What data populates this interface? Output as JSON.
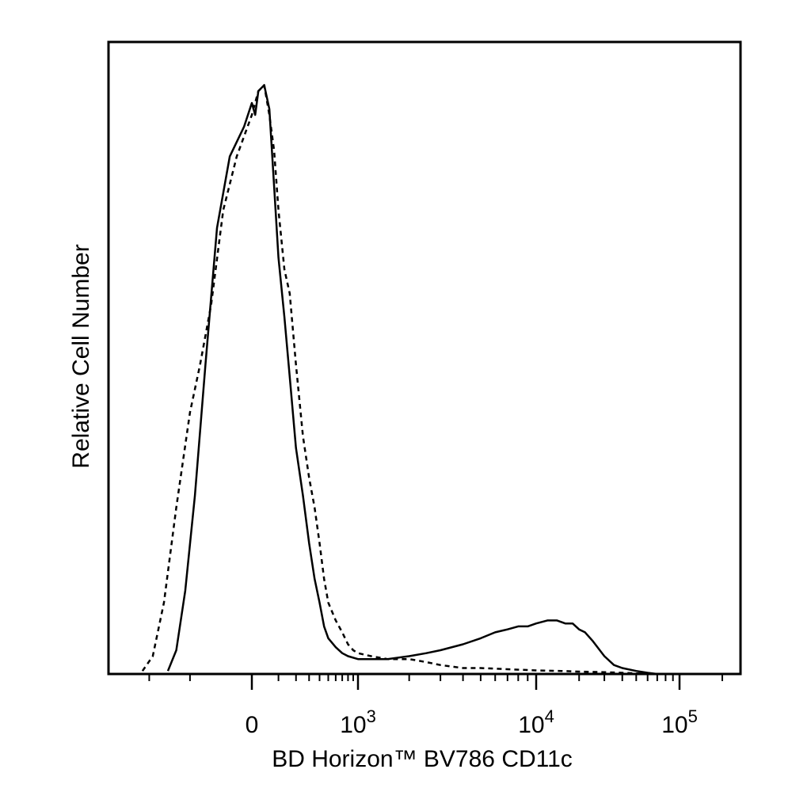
{
  "chart_data": {
    "type": "line",
    "title": "",
    "xlabel": "BD Horizon™ BV786 CD11c",
    "ylabel": "Relative Cell Number",
    "x_scale": "biexponential",
    "xlim": [
      -300,
      200000
    ],
    "ylim": [
      0,
      100
    ],
    "grid": false,
    "legend": "none",
    "x_ticks": [
      {
        "value": 0,
        "base": "0",
        "exp": ""
      },
      {
        "value": 1000,
        "base": "10",
        "exp": "3"
      },
      {
        "value": 10000,
        "base": "10",
        "exp": "4"
      },
      {
        "value": 100000,
        "base": "10",
        "exp": "5"
      }
    ],
    "y_ticks": [],
    "series": [
      {
        "style": "dashed",
        "color": "#000000",
        "x": [
          -220,
          -190,
          -160,
          -130,
          -100,
          -80,
          -60,
          -40,
          -20,
          0,
          20,
          40,
          60,
          80,
          100,
          130,
          160,
          200,
          250,
          300,
          350,
          400,
          450,
          500,
          600,
          700,
          800,
          900,
          1000,
          1200,
          1500,
          2000,
          2500,
          3000,
          4000,
          5000,
          7000,
          10000,
          15000,
          20000,
          30000,
          40000,
          50000,
          60000,
          70000
        ],
        "y": [
          0.5,
          3,
          12,
          28,
          44,
          52,
          62,
          78,
          87,
          94,
          98,
          99,
          94,
          88,
          78,
          68,
          64,
          52,
          40,
          33,
          28,
          22,
          16,
          12,
          9,
          7,
          5,
          4,
          3.5,
          3,
          2.5,
          2.5,
          2,
          1.5,
          1,
          1,
          0.8,
          0.6,
          0.5,
          0.4,
          0.3,
          0.2,
          0.1,
          0.05,
          0
        ]
      },
      {
        "style": "solid",
        "color": "#000000",
        "x": [
          -150,
          -130,
          -110,
          -90,
          -70,
          -50,
          -30,
          -10,
          0,
          10,
          20,
          40,
          60,
          80,
          100,
          130,
          160,
          200,
          250,
          300,
          350,
          400,
          450,
          500,
          600,
          700,
          800,
          1000,
          1200,
          1500,
          2000,
          2500,
          3000,
          4000,
          5000,
          6000,
          7000,
          8000,
          9000,
          10000,
          12000,
          14000,
          16000,
          18000,
          20000,
          22000,
          25000,
          30000,
          35000,
          40000,
          50000,
          60000,
          70000
        ],
        "y": [
          0.5,
          4,
          14,
          30,
          52,
          75,
          87,
          92,
          96,
          94,
          98,
          99,
          95,
          82,
          70,
          60,
          50,
          38,
          30,
          22,
          16,
          12,
          8,
          6,
          4.5,
          3.5,
          3,
          2.5,
          2.5,
          2.5,
          3,
          3.5,
          4,
          5,
          6,
          7,
          7.5,
          8,
          8,
          8.5,
          9,
          9,
          8.5,
          8.5,
          7.5,
          7,
          5.5,
          3,
          1.5,
          1,
          0.5,
          0.2,
          0
        ]
      }
    ]
  }
}
